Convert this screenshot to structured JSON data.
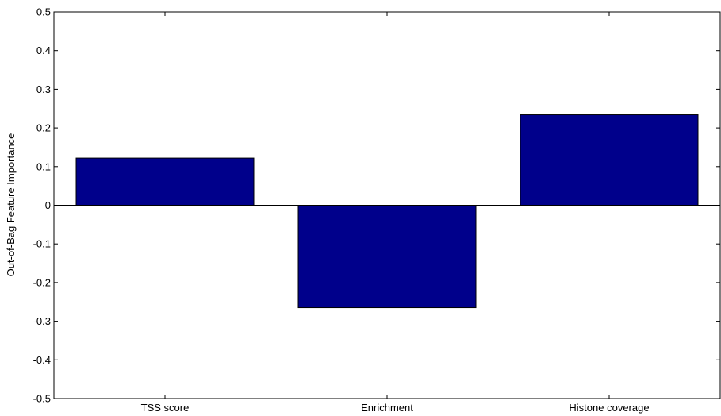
{
  "chart_data": {
    "type": "bar",
    "title": "",
    "xlabel": "",
    "ylabel": "Out-of-Bag Feature Importance",
    "categories": [
      "TSS score",
      "Enrichment",
      "Histone coverage"
    ],
    "values": [
      0.122,
      -0.265,
      0.234
    ],
    "ylim": [
      -0.5,
      0.5
    ],
    "yticks": [
      0.5,
      0.4,
      0.3,
      0.2,
      0.1,
      0,
      -0.1,
      -0.2,
      -0.3,
      -0.4,
      -0.5
    ],
    "ytick_labels": [
      "0.5",
      "0.4",
      "0.3",
      "0.2",
      "0.1",
      "0",
      "-0.1",
      "-0.2",
      "-0.3",
      "-0.4",
      "-0.5"
    ],
    "grid": false,
    "bar_color": "#00008b"
  }
}
